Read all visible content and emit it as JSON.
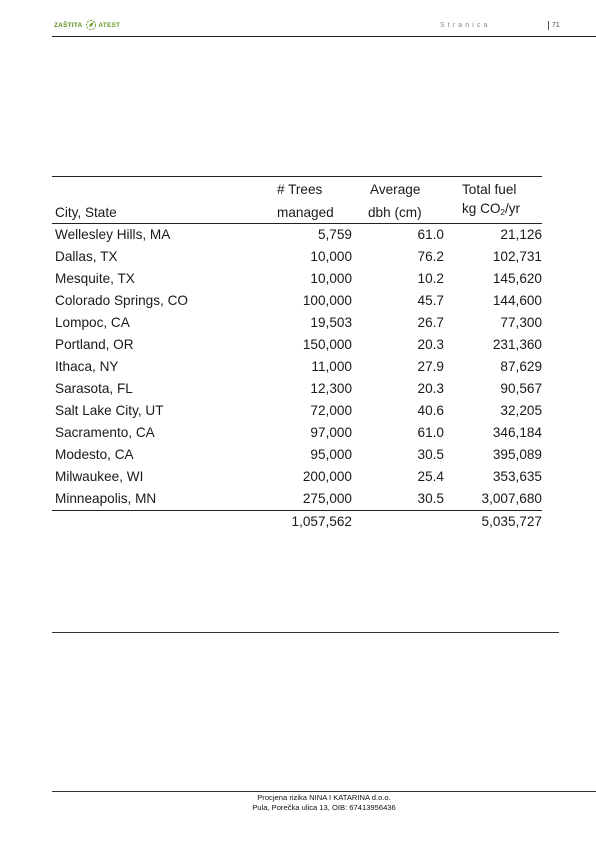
{
  "header": {
    "logo_word1": "ZAŠTITA",
    "logo_word2": "ATEST",
    "page_label": "Stranica",
    "page_number": "71",
    "brand_color": "#6a9a2a"
  },
  "table": {
    "headers_top": [
      "",
      "# Trees",
      "Average",
      "Total fuel"
    ],
    "headers_bottom": {
      "city": "City, State",
      "trees": "managed",
      "dbh": "dbh (cm)",
      "fuel_prefix": "kg CO",
      "fuel_sub": "2",
      "fuel_suffix": "/yr"
    },
    "rows": [
      {
        "city": "Wellesley Hills, MA",
        "trees": "5,759",
        "dbh": "61.0",
        "fuel": "21,126"
      },
      {
        "city": "Dallas, TX",
        "trees": "10,000",
        "dbh": "76.2",
        "fuel": "102,731"
      },
      {
        "city": "Mesquite, TX",
        "trees": "10,000",
        "dbh": "10.2",
        "fuel": "145,620"
      },
      {
        "city": "Colorado Springs, CO",
        "trees": "100,000",
        "dbh": "45.7",
        "fuel": "144,600"
      },
      {
        "city": "Lompoc, CA",
        "trees": "19,503",
        "dbh": "26.7",
        "fuel": "77,300"
      },
      {
        "city": "Portland, OR",
        "trees": "150,000",
        "dbh": "20.3",
        "fuel": "231,360"
      },
      {
        "city": "Ithaca, NY",
        "trees": "11,000",
        "dbh": "27.9",
        "fuel": "87,629"
      },
      {
        "city": "Sarasota, FL",
        "trees": "12,300",
        "dbh": "20.3",
        "fuel": "90,567"
      },
      {
        "city": "Salt Lake City, UT",
        "trees": "72,000",
        "dbh": "40.6",
        "fuel": "32,205"
      },
      {
        "city": "Sacramento, CA",
        "trees": "97,000",
        "dbh": "61.0",
        "fuel": "346,184"
      },
      {
        "city": "Modesto, CA",
        "trees": "95,000",
        "dbh": "30.5",
        "fuel": "395,089"
      },
      {
        "city": "Milwaukee, WI",
        "trees": "200,000",
        "dbh": "25.4",
        "fuel": "353,635"
      },
      {
        "city": "Minneapolis, MN",
        "trees": "275,000",
        "dbh": "30.5",
        "fuel": "3,007,680"
      }
    ],
    "totals": {
      "trees": "1,057,562",
      "fuel": "5,035,727"
    }
  },
  "footer": {
    "line1": "Procjena rizika NINA I KATARINA d.o.o.",
    "line2": "Pula, Porečka ulica 13, OIB: 67413956436"
  }
}
